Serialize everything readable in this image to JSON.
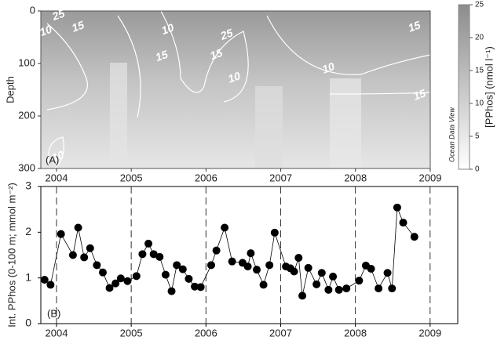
{
  "chart_data": [
    {
      "type": "contour",
      "panel_label": "(A)",
      "ylabel": "Depth",
      "watermark": "Ocean Data View",
      "xlim": [
        2003.79,
        2009.0
      ],
      "xticks": [
        2004,
        2005,
        2006,
        2007,
        2008,
        2009
      ],
      "ylim": [
        300,
        0
      ],
      "yticks": [
        0,
        100,
        200,
        300
      ],
      "colorbar": {
        "label": "[PPhos] (nmol l⁻¹)",
        "lim": [
          0,
          25
        ],
        "ticks": [
          0,
          5,
          10,
          15,
          20,
          25
        ]
      },
      "contour_labels": [
        {
          "x": 2004.03,
          "y": 9,
          "level": 25
        },
        {
          "x": 2004.29,
          "y": 31,
          "level": 15
        },
        {
          "x": 2003.86,
          "y": 39,
          "level": 10
        },
        {
          "x": 2005.49,
          "y": 36,
          "level": 10
        },
        {
          "x": 2005.41,
          "y": 87,
          "level": 15
        },
        {
          "x": 2006.14,
          "y": 84,
          "level": 15
        },
        {
          "x": 2006.28,
          "y": 46,
          "level": 25
        },
        {
          "x": 2006.38,
          "y": 128,
          "level": 10
        },
        {
          "x": 2007.64,
          "y": 110,
          "level": 10
        },
        {
          "x": 2008.79,
          "y": 31,
          "level": 15
        },
        {
          "x": 2008.86,
          "y": 161,
          "level": 15
        },
        {
          "x": 2004.02,
          "y": 278,
          "level": 10
        }
      ]
    },
    {
      "type": "line",
      "panel_label": "(B)",
      "ylabel": "Int. PPhos (0-100 m; mmol m⁻²)",
      "color": "#000000",
      "xlim": [
        2003.79,
        2009.37
      ],
      "xticks": [
        2004,
        2005,
        2006,
        2007,
        2008,
        2009
      ],
      "xgrid": "dashed",
      "ylim": [
        0,
        3
      ],
      "yticks": [
        0,
        1,
        2,
        3
      ],
      "x": [
        2003.84,
        2003.92,
        2004.06,
        2004.22,
        2004.29,
        2004.37,
        2004.45,
        2004.54,
        2004.62,
        2004.71,
        2004.79,
        2004.86,
        2004.95,
        2005.07,
        2005.15,
        2005.23,
        2005.3,
        2005.38,
        2005.46,
        2005.54,
        2005.61,
        2005.69,
        2005.77,
        2005.85,
        2005.93,
        2006.07,
        2006.14,
        2006.25,
        2006.35,
        2006.49,
        2006.56,
        2006.6,
        2006.68,
        2006.77,
        2006.85,
        2006.92,
        2007.07,
        2007.13,
        2007.18,
        2007.24,
        2007.29,
        2007.37,
        2007.48,
        2007.55,
        2007.64,
        2007.7,
        2007.78,
        2007.88,
        2008.05,
        2008.14,
        2008.21,
        2008.31,
        2008.43,
        2008.49,
        2008.56,
        2008.64,
        2008.79
      ],
      "values": [
        0.96,
        0.85,
        1.96,
        1.5,
        2.1,
        1.45,
        1.65,
        1.28,
        1.12,
        0.78,
        0.88,
        0.99,
        0.93,
        1.04,
        1.52,
        1.75,
        1.52,
        1.46,
        1.07,
        0.71,
        1.28,
        1.19,
        0.98,
        0.81,
        0.8,
        1.28,
        1.6,
        2.1,
        1.36,
        1.33,
        1.25,
        1.54,
        1.18,
        0.85,
        1.28,
        1.99,
        1.25,
        1.21,
        1.14,
        1.44,
        0.61,
        1.22,
        0.86,
        1.11,
        0.74,
        1.03,
        0.74,
        0.77,
        0.94,
        1.27,
        1.2,
        0.77,
        1.11,
        0.77,
        2.54,
        2.21,
        1.9
      ]
    }
  ]
}
